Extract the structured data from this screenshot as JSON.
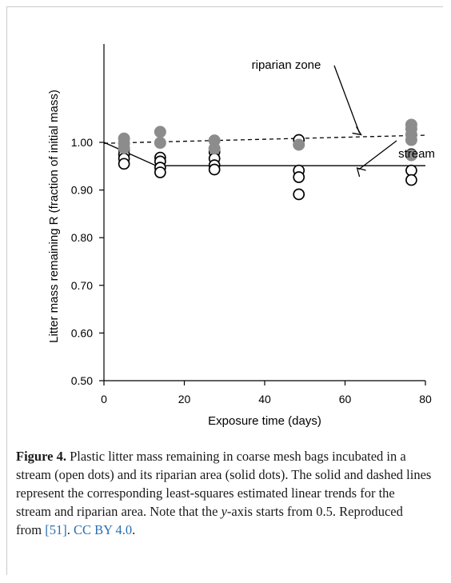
{
  "chart_data": {
    "type": "scatter",
    "xlabel": "Exposure time (days)",
    "ylabel": "Litter mass remaining R (fraction of initial mass)",
    "xlim": [
      0,
      80
    ],
    "ylim": [
      0.5,
      1.05
    ],
    "x_ticks": [
      "0",
      "20",
      "40",
      "60",
      "80"
    ],
    "y_ticks": [
      "0.50",
      "0.60",
      "0.70",
      "0.80",
      "0.90",
      "1.00"
    ],
    "grid": false,
    "legend": "none",
    "series": [
      {
        "name": "stream",
        "marker": "open",
        "color": "#000000",
        "points": [
          [
            5,
            0.985
          ],
          [
            5,
            0.975
          ],
          [
            5,
            0.966
          ],
          [
            5,
            0.955
          ],
          [
            14,
            0.968
          ],
          [
            14,
            0.96
          ],
          [
            14,
            0.947
          ],
          [
            14,
            0.937
          ],
          [
            27.5,
            0.98
          ],
          [
            27.5,
            0.966
          ],
          [
            27.5,
            0.952
          ],
          [
            27.5,
            0.943
          ],
          [
            48.5,
            1.005
          ],
          [
            48.5,
            0.941
          ],
          [
            48.5,
            0.927
          ],
          [
            48.5,
            0.891
          ],
          [
            76.5,
            0.975
          ],
          [
            76.5,
            0.941
          ],
          [
            76.5,
            0.921
          ]
        ]
      },
      {
        "name": "riparian zone",
        "marker": "solid",
        "color": "#8c8c8c",
        "points": [
          [
            5,
            1.008
          ],
          [
            5,
            0.998
          ],
          [
            5,
            0.988
          ],
          [
            14,
            1.022
          ],
          [
            14,
            0.999
          ],
          [
            27.5,
            1.004
          ],
          [
            27.5,
            0.987
          ],
          [
            48.5,
            0.995
          ],
          [
            76.5,
            1.037
          ],
          [
            76.5,
            1.028
          ],
          [
            76.5,
            1.016
          ],
          [
            76.5,
            1.005
          ],
          [
            76.5,
            0.973
          ]
        ]
      }
    ],
    "trends": {
      "stream": {
        "style": "solid",
        "points": [
          [
            0,
            1.0
          ],
          [
            13,
            0.951
          ],
          [
            80,
            0.951
          ]
        ]
      },
      "riparian": {
        "style": "dashed",
        "points": [
          [
            0,
            0.998
          ],
          [
            80,
            1.015
          ]
        ]
      }
    },
    "annotations": [
      {
        "text": "riparian zone",
        "arrow_to": [
          64,
          1.011
        ]
      },
      {
        "text": "stream",
        "arrow_to": [
          63,
          0.948
        ]
      }
    ]
  },
  "caption": {
    "label": "Figure 4.",
    "text_1": " Plastic litter mass remaining in coarse mesh bags incubated in a stream (open dots) and its riparian area (solid dots). The solid and dashed lines represent the corresponding least-squares estimated linear trends for the stream and riparian area. Note that the ",
    "axis_var": "y",
    "text_2": "-axis starts from 0.5. Reproduced from ",
    "citation": "[51]",
    "text_3": ". ",
    "license": "CC BY 4.0",
    "text_4": "."
  }
}
